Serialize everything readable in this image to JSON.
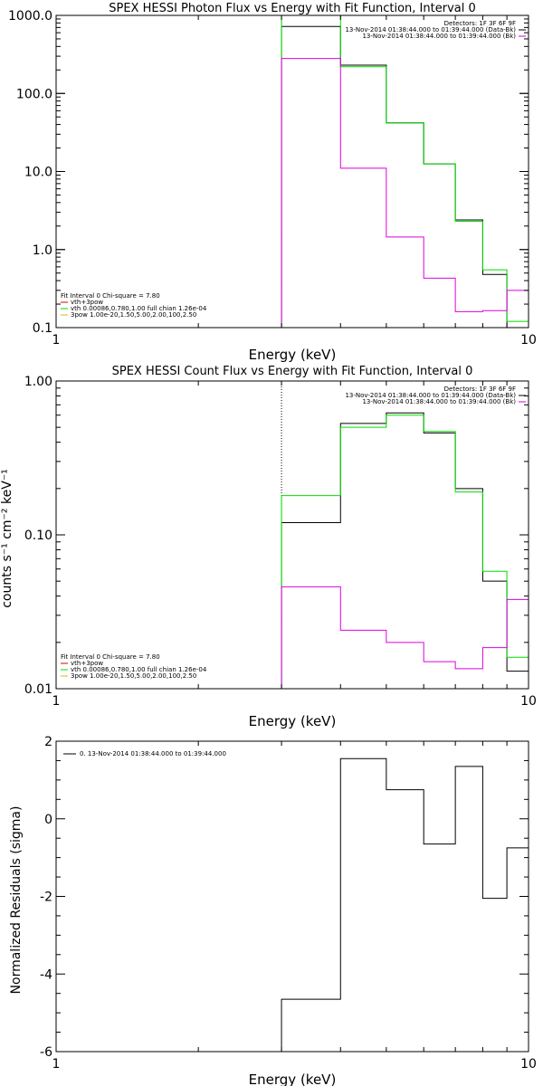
{
  "colors": {
    "black": "#000000",
    "green": "#00dd00",
    "magenta": "#dd00dd",
    "red": "#dd0000",
    "orange": "#ddbb00"
  },
  "chart_data": [
    {
      "type": "line",
      "title": "SPEX HESSI Photon Flux vs Energy with Fit Function, Interval 0",
      "xlabel": "Energy (keV)",
      "ylabel": "",
      "xscale": "log",
      "yscale": "log",
      "xlim": [
        1,
        10
      ],
      "ylim": [
        0.1,
        1000
      ],
      "xticks": [
        {
          "v": 1,
          "label": "1"
        },
        {
          "v": 10,
          "label": "10"
        }
      ],
      "yticks": [
        {
          "v": 0.1,
          "label": "0.1"
        },
        {
          "v": 1,
          "label": "1.0"
        },
        {
          "v": 10,
          "label": "10.0"
        },
        {
          "v": 100,
          "label": "100.0"
        },
        {
          "v": 1000,
          "label": "1000.0"
        }
      ],
      "vline": 3,
      "bin_edges": [
        3,
        4,
        5,
        6,
        7,
        8,
        9,
        10
      ],
      "series": [
        {
          "color": "#000000",
          "values": [
            720,
            230,
            42,
            12.5,
            2.4,
            0.48,
            0.1
          ]
        },
        {
          "color": "#00dd00",
          "values": [
            1000,
            220,
            42,
            12.5,
            2.3,
            0.55,
            0.12
          ]
        },
        {
          "color": "#dd00dd",
          "values": [
            280,
            11,
            1.45,
            0.43,
            0.16,
            0.165,
            0.3
          ]
        }
      ],
      "legend_top": [
        "Detectors: 1F 3F 6F 9F",
        "13-Nov-2014 01:38:44.000 to 01:39:44.000 (Data-Bk)",
        "13-Nov-2014 01:38:44.000 to 01:39:44.000 (Bk)"
      ],
      "legend_bottom": {
        "heading": "Fit Interval 0   Chi-square = 7.80",
        "items": [
          {
            "color": "#dd0000",
            "text": "vth+3pow"
          },
          {
            "color": "#00dd00",
            "text": "vth 0.00086,0.780,1.00  full chian 1.26e-04"
          },
          {
            "color": "#ddbb00",
            "text": "3pow 1.00e-20,1.50,5.00,2.00,100,2.50"
          }
        ]
      }
    },
    {
      "type": "line",
      "title": "SPEX HESSI Count Flux vs Energy with Fit Function, Interval 0",
      "xlabel": "Energy (keV)",
      "ylabel": "counts s⁻¹ cm⁻² keV⁻¹",
      "xscale": "log",
      "yscale": "log",
      "xlim": [
        1,
        10
      ],
      "ylim": [
        0.01,
        1
      ],
      "xticks": [
        {
          "v": 1,
          "label": "1"
        },
        {
          "v": 10,
          "label": "10"
        }
      ],
      "yticks": [
        {
          "v": 0.01,
          "label": "0.01"
        },
        {
          "v": 0.1,
          "label": "0.10"
        },
        {
          "v": 1,
          "label": "1.00"
        }
      ],
      "vline": 3,
      "bin_edges": [
        3,
        4,
        5,
        6,
        7,
        8,
        9,
        10
      ],
      "series": [
        {
          "color": "#000000",
          "values": [
            0.12,
            0.53,
            0.62,
            0.46,
            0.2,
            0.05,
            0.013
          ]
        },
        {
          "color": "#00dd00",
          "values": [
            0.18,
            0.5,
            0.6,
            0.47,
            0.19,
            0.058,
            0.016
          ]
        },
        {
          "color": "#dd00dd",
          "values": [
            0.046,
            0.024,
            0.02,
            0.015,
            0.0135,
            0.0185,
            0.038
          ]
        }
      ],
      "legend_top": [
        "Detectors: 1F 3F 6F 9F",
        "13-Nov-2014 01:38:44.000 to 01:39:44.000 (Data-Bk)",
        "13-Nov-2014 01:38:44.000 to 01:39:44.000 (Bk)"
      ],
      "legend_bottom": {
        "heading": "Fit Interval 0   Chi-square = 7.80",
        "items": [
          {
            "color": "#dd0000",
            "text": "vth+3pow"
          },
          {
            "color": "#00dd00",
            "text": "vth 0.00086,0.780,1.00  full chian 1.26e-04"
          },
          {
            "color": "#ddbb00",
            "text": "3pow 1.00e-20,1.50,5.00,2.00,100,2.50"
          }
        ]
      }
    },
    {
      "type": "line",
      "title": "",
      "xlabel": "Energy (keV)",
      "ylabel": "Normalized Residuals (sigma)",
      "xscale": "log",
      "yscale": "linear",
      "xlim": [
        1,
        10
      ],
      "ylim": [
        -6,
        2
      ],
      "xticks": [
        {
          "v": 1,
          "label": "1"
        },
        {
          "v": 10,
          "label": "10"
        }
      ],
      "yticks": [
        {
          "v": -6,
          "label": "-6"
        },
        {
          "v": -4,
          "label": "-4"
        },
        {
          "v": -2,
          "label": "-2"
        },
        {
          "v": 0,
          "label": "0"
        },
        {
          "v": 2,
          "label": "2"
        }
      ],
      "bin_edges": [
        3,
        4,
        5,
        6,
        7,
        8,
        9,
        10
      ],
      "series": [
        {
          "color": "#000000",
          "values": [
            -4.65,
            1.55,
            0.75,
            -0.65,
            1.35,
            -2.05,
            -0.75
          ]
        }
      ],
      "legend_top": [
        "0. 13-Nov-2014 01:38:44.000 to 01:39:44.000"
      ]
    }
  ]
}
